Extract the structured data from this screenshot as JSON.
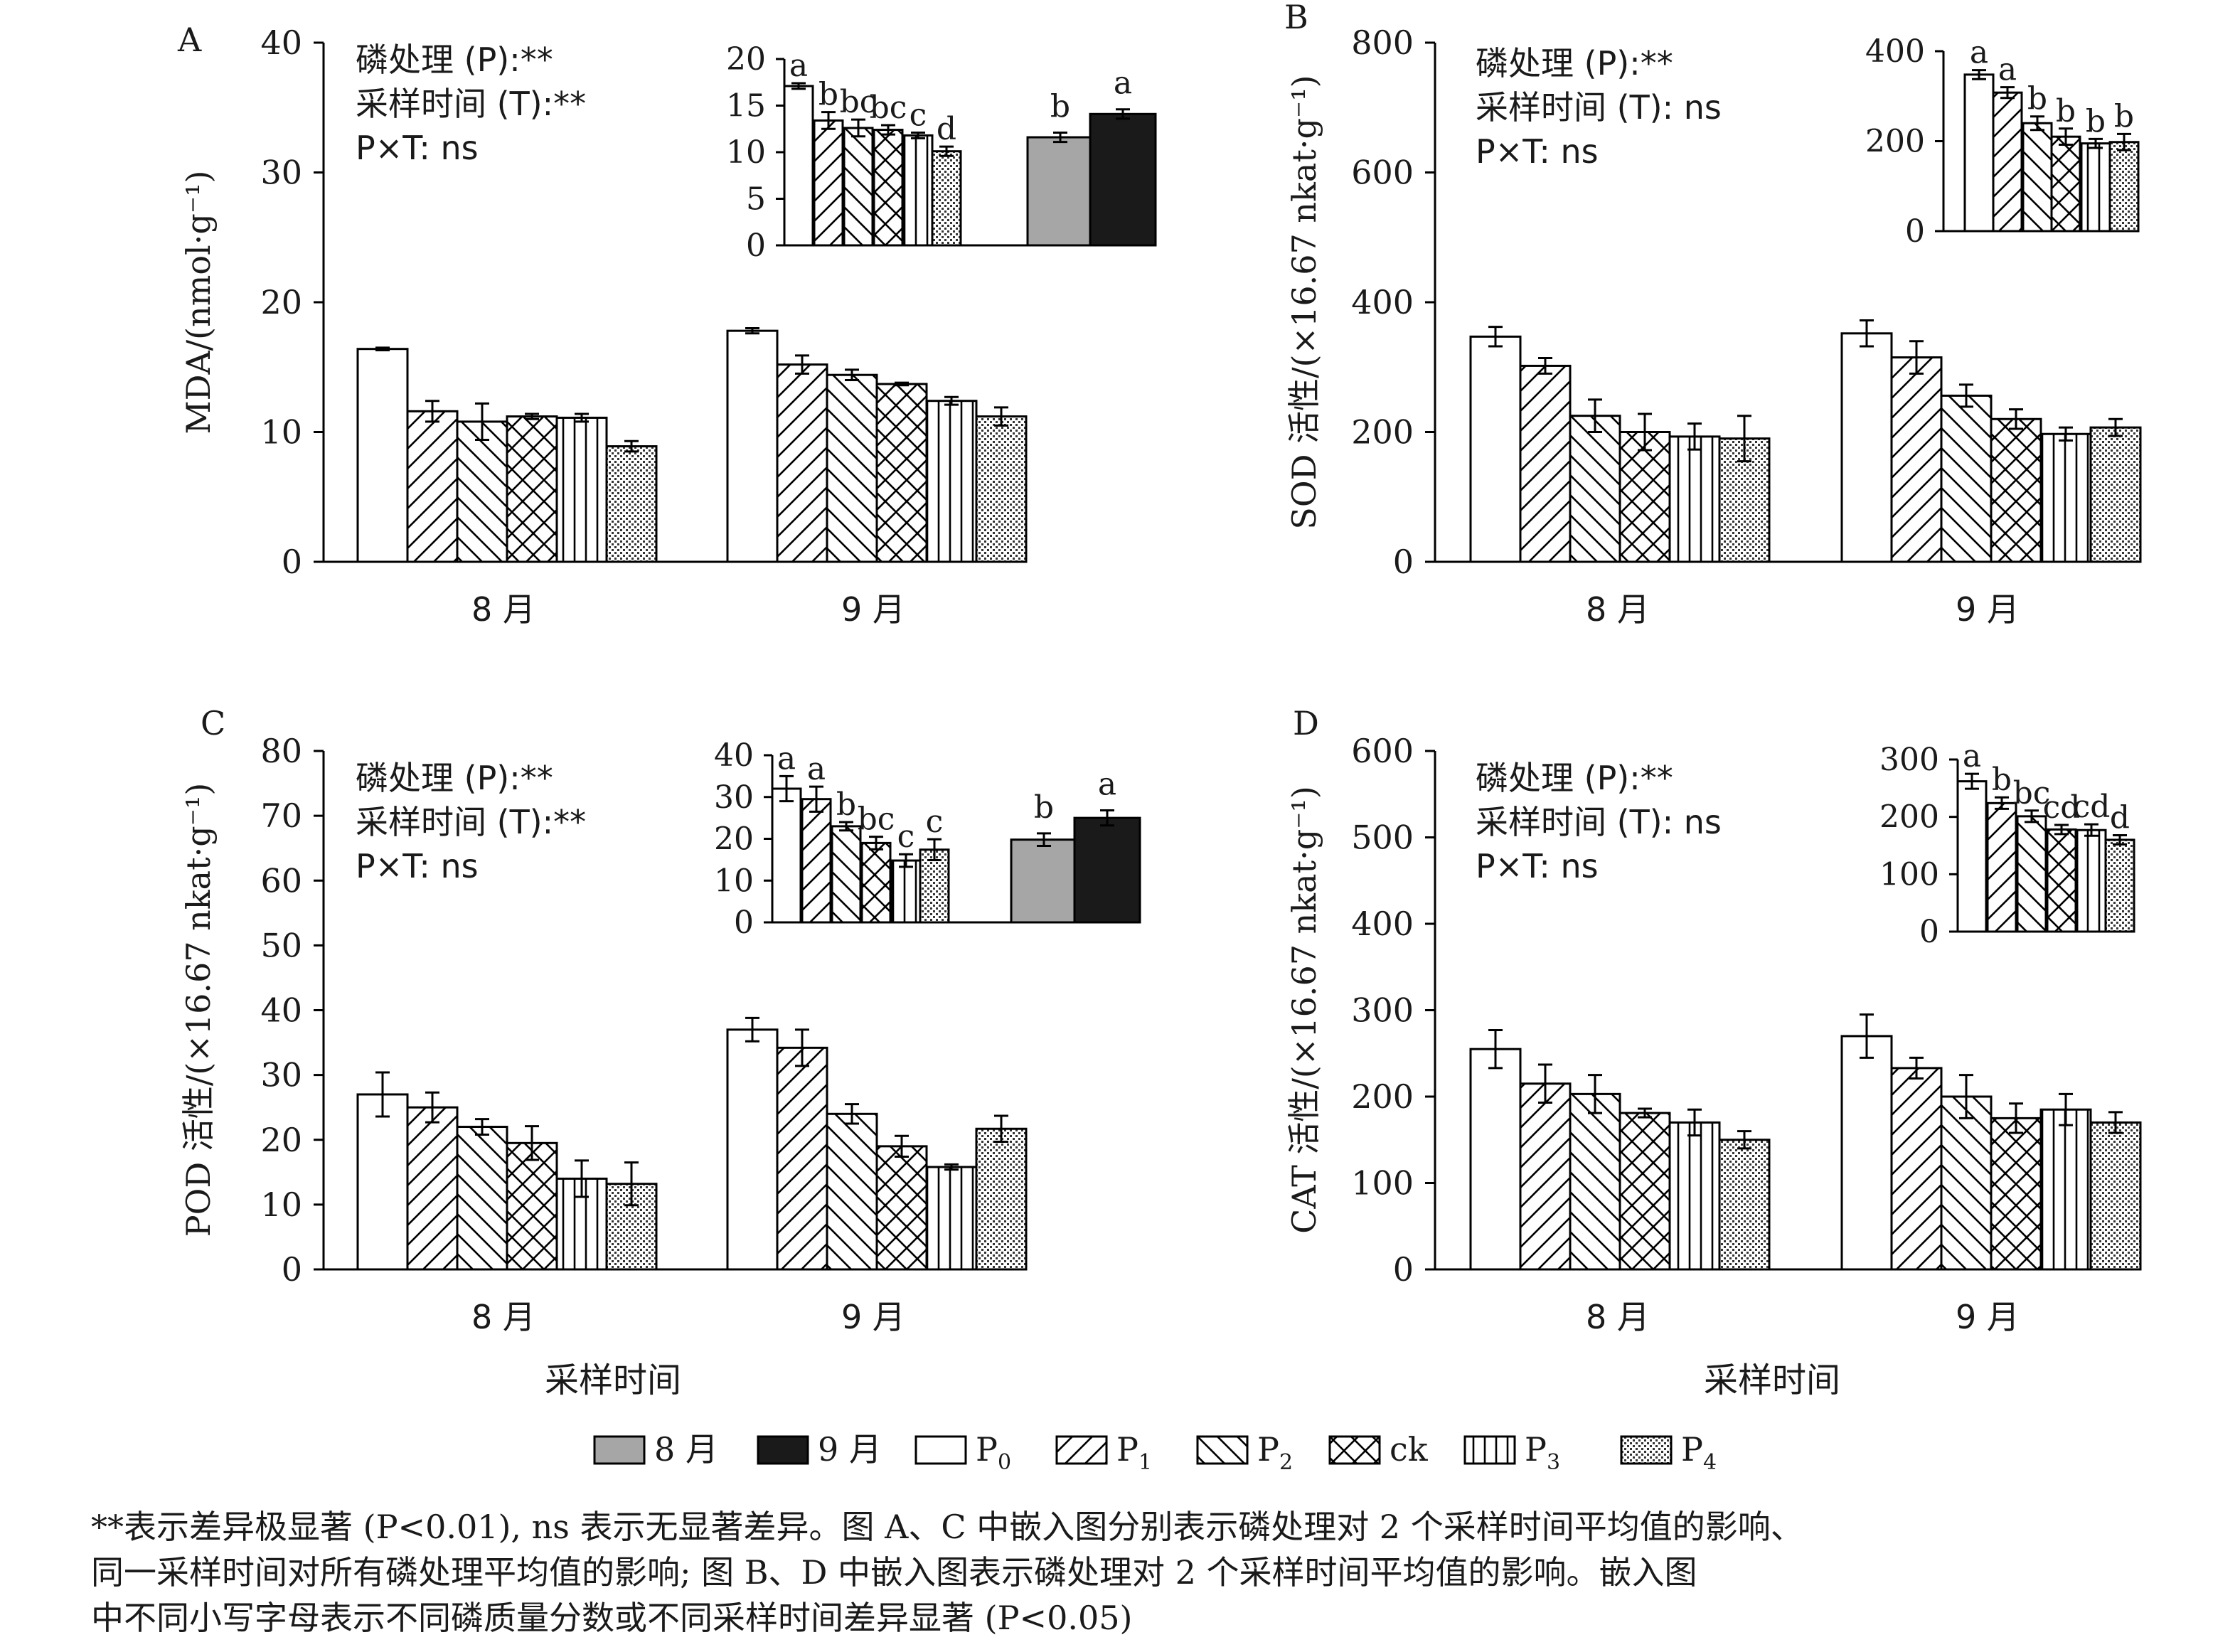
{
  "months": [
    "8 月",
    "9 月"
  ],
  "treatments": [
    "P0",
    "P1",
    "P2",
    "ck",
    "P3",
    "P4"
  ],
  "x_title": "采样时间",
  "stats_lines": [
    "磷处理 (P):**",
    "采样时间 (T):**",
    "P×T: ns"
  ],
  "legend": [
    {
      "label": "8 月",
      "fill": "month8"
    },
    {
      "label": "9 月",
      "fill": "month9"
    },
    {
      "label": "P",
      "sub": "0",
      "fill": "P0"
    },
    {
      "label": "P",
      "sub": "1",
      "fill": "P1"
    },
    {
      "label": "P",
      "sub": "2",
      "fill": "P2"
    },
    {
      "label": "ck",
      "sub": "",
      "fill": "ck"
    },
    {
      "label": "P",
      "sub": "3",
      "fill": "P3"
    },
    {
      "label": "P",
      "sub": "4",
      "fill": "P4"
    }
  ],
  "caption": [
    "**表示差异极显著 (P<0.01), ns 表示无显著差异。图 A、C 中嵌入图分别表示磷处理对 2 个采样时间平均值的影响、",
    "同一采样时间对所有磷处理平均值的影响; 图 B、D 中嵌入图表示磷处理对 2 个采样时间平均值的影响。嵌入图",
    "中不同小写字母表示不同磷质量分数或不同采样时间差异显著 (P<0.05)"
  ],
  "chart_data": [
    {
      "panel": "A",
      "type": "bar",
      "ylabel": "MDA/(nmol·g⁻¹)",
      "ylim": [
        0,
        40
      ],
      "yticks": [
        0,
        10,
        20,
        30,
        40
      ],
      "stats": [
        "磷处理 (P):**",
        "采样时间 (T):**",
        "P×T: ns"
      ],
      "categories": [
        "8 月",
        "9 月"
      ],
      "series": [
        {
          "name": "P0",
          "values": [
            16.4,
            17.8
          ],
          "errors": [
            0.1,
            0.2
          ]
        },
        {
          "name": "P1",
          "values": [
            11.6,
            15.2
          ],
          "errors": [
            0.8,
            0.7
          ]
        },
        {
          "name": "P2",
          "values": [
            10.8,
            14.4
          ],
          "errors": [
            1.4,
            0.4
          ]
        },
        {
          "name": "ck",
          "values": [
            11.2,
            13.7
          ],
          "errors": [
            0.2,
            0.1
          ]
        },
        {
          "name": "P3",
          "values": [
            11.1,
            12.4
          ],
          "errors": [
            0.3,
            0.3
          ]
        },
        {
          "name": "P4",
          "values": [
            8.9,
            11.2
          ],
          "errors": [
            0.4,
            0.7
          ]
        }
      ],
      "inset": {
        "ylim": [
          0,
          20
        ],
        "yticks": [
          0,
          5,
          10,
          15,
          20
        ],
        "treatment_values": [
          17.1,
          13.4,
          12.6,
          12.4,
          11.8,
          10.1
        ],
        "treatment_errors": [
          0.3,
          0.9,
          0.9,
          0.5,
          0.3,
          0.5
        ],
        "treatment_letters": [
          "a",
          "b",
          "bc",
          "bc",
          "c",
          "d"
        ],
        "month_values": [
          11.6,
          14.1
        ],
        "month_errors": [
          0.5,
          0.5
        ],
        "month_letters": [
          "b",
          "a"
        ]
      }
    },
    {
      "panel": "B",
      "type": "bar",
      "ylabel": "SOD 活性/(×16.67 nkat·g⁻¹)",
      "ylim": [
        0,
        800
      ],
      "yticks": [
        0,
        200,
        400,
        600,
        800
      ],
      "stats": [
        "磷处理 (P):**",
        "采样时间 (T): ns",
        "P×T: ns"
      ],
      "categories": [
        "8 月",
        "9 月"
      ],
      "series": [
        {
          "name": "P0",
          "values": [
            347,
            352
          ],
          "errors": [
            15,
            20
          ]
        },
        {
          "name": "P1",
          "values": [
            302,
            315
          ],
          "errors": [
            12,
            25
          ]
        },
        {
          "name": "P2",
          "values": [
            225,
            256
          ],
          "errors": [
            25,
            17
          ]
        },
        {
          "name": "ck",
          "values": [
            200,
            220
          ],
          "errors": [
            28,
            15
          ]
        },
        {
          "name": "P3",
          "values": [
            193,
            197
          ],
          "errors": [
            20,
            10
          ]
        },
        {
          "name": "P4",
          "values": [
            190,
            207
          ],
          "errors": [
            35,
            13
          ]
        }
      ],
      "inset": {
        "ylim": [
          0,
          400
        ],
        "yticks": [
          0,
          200,
          400
        ],
        "treatment_values": [
          348,
          308,
          240,
          210,
          195,
          198
        ],
        "treatment_errors": [
          10,
          12,
          15,
          18,
          10,
          18
        ],
        "treatment_letters": [
          "a",
          "a",
          "b",
          "b",
          "b",
          "b"
        ]
      }
    },
    {
      "panel": "C",
      "type": "bar",
      "ylabel": "POD 活性/(×16.67 nkat·g⁻¹)",
      "ylim": [
        0,
        80
      ],
      "yticks": [
        0,
        10,
        20,
        30,
        40,
        50,
        60,
        70,
        80
      ],
      "stats": [
        "磷处理 (P):**",
        "采样时间 (T):**",
        "P×T: ns"
      ],
      "categories": [
        "8 月",
        "9 月"
      ],
      "series": [
        {
          "name": "P0",
          "values": [
            27,
            37
          ],
          "errors": [
            3.4,
            1.8
          ]
        },
        {
          "name": "P1",
          "values": [
            25,
            34.2
          ],
          "errors": [
            2.3,
            2.8
          ]
        },
        {
          "name": "P2",
          "values": [
            22,
            24
          ],
          "errors": [
            1.2,
            1.5
          ]
        },
        {
          "name": "ck",
          "values": [
            19.5,
            19
          ],
          "errors": [
            2.6,
            1.6
          ]
        },
        {
          "name": "P3",
          "values": [
            14,
            15.8
          ],
          "errors": [
            2.8,
            0.4
          ]
        },
        {
          "name": "P4",
          "values": [
            13.2,
            21.7
          ],
          "errors": [
            3.3,
            2
          ]
        }
      ],
      "inset": {
        "ylim": [
          0,
          40
        ],
        "yticks": [
          0,
          10,
          20,
          30,
          40
        ],
        "treatment_values": [
          32,
          29.5,
          23,
          19,
          14.8,
          17.4
        ],
        "treatment_errors": [
          3,
          3,
          1,
          1.5,
          1.5,
          2.5
        ],
        "treatment_letters": [
          "a",
          "a",
          "b",
          "bc",
          "c",
          "c"
        ],
        "month_values": [
          19.8,
          25
        ],
        "month_errors": [
          1.5,
          1.8
        ],
        "month_letters": [
          "b",
          "a"
        ]
      }
    },
    {
      "panel": "D",
      "type": "bar",
      "ylabel": "CAT 活性/(×16.67 nkat·g⁻¹)",
      "ylim": [
        0,
        600
      ],
      "yticks": [
        0,
        100,
        200,
        300,
        400,
        500,
        600
      ],
      "stats": [
        "磷处理 (P):**",
        "采样时间 (T): ns",
        "P×T: ns"
      ],
      "categories": [
        "8 月",
        "9 月"
      ],
      "series": [
        {
          "name": "P0",
          "values": [
            255,
            270
          ],
          "errors": [
            22,
            25
          ]
        },
        {
          "name": "P1",
          "values": [
            215,
            233
          ],
          "errors": [
            22,
            12
          ]
        },
        {
          "name": "P2",
          "values": [
            203,
            200
          ],
          "errors": [
            22,
            25
          ]
        },
        {
          "name": "ck",
          "values": [
            181,
            175
          ],
          "errors": [
            5,
            17
          ]
        },
        {
          "name": "P3",
          "values": [
            170,
            185
          ],
          "errors": [
            15,
            18
          ]
        },
        {
          "name": "P4",
          "values": [
            150,
            170
          ],
          "errors": [
            10,
            12
          ]
        }
      ],
      "inset": {
        "ylim": [
          0,
          300
        ],
        "yticks": [
          0,
          100,
          200,
          300
        ],
        "treatment_values": [
          262,
          224,
          201,
          178,
          177,
          160
        ],
        "treatment_errors": [
          13,
          10,
          10,
          8,
          10,
          8
        ],
        "treatment_letters": [
          "a",
          "b",
          "bc",
          "cd",
          "cd",
          "d"
        ]
      }
    }
  ]
}
